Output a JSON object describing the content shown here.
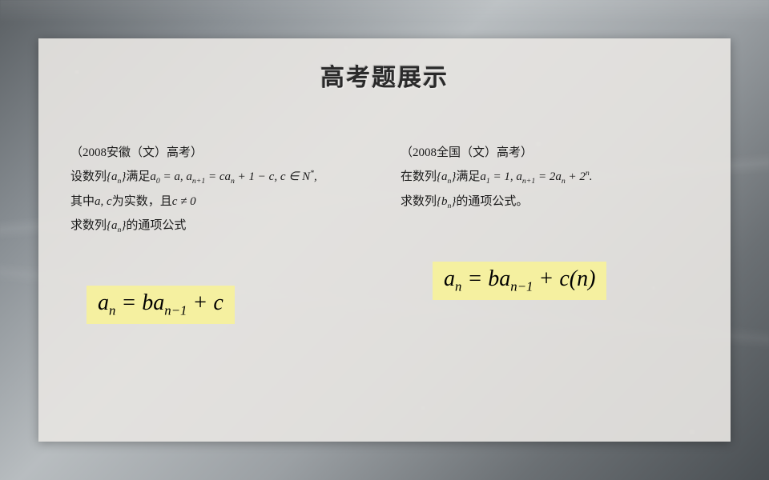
{
  "slide": {
    "title": "高考题展示",
    "background_colors": {
      "panel": "rgba(230, 228, 225, 0.92)",
      "highlight": "#f5f0a0"
    },
    "left_problem": {
      "source": "（2008安徽（文）高考）",
      "line1_prefix": "设数列",
      "line1_seq": "{aₙ}",
      "line1_mid": "满足",
      "line1_math": "a₀ = a, aₙ₊₁ = caₙ + 1 − c, c ∈ N*,",
      "line2_prefix": "其中",
      "line2_math1": "a, c",
      "line2_mid": "为实数，且",
      "line2_math2": "c ≠ 0",
      "line3_prefix": "求数列",
      "line3_seq": "{aₙ}",
      "line3_suffix": "的通项公式",
      "formula": "aₙ = baₙ₋₁ + c"
    },
    "right_problem": {
      "source": "（2008全国（文）高考）",
      "line1_prefix": "在数列",
      "line1_seq": "{aₙ}",
      "line1_mid": "满足",
      "line1_math": "a₁ = 1, aₙ₊₁ = 2aₙ + 2ⁿ.",
      "line2_prefix": "求数列",
      "line2_seq": "{bₙ}",
      "line2_suffix": "的通项公式。",
      "formula": "aₙ = baₙ₋₁ + c(n)"
    },
    "typography": {
      "title_fontsize": 30,
      "body_fontsize": 15,
      "formula_fontsize": 28,
      "body_font": "SimSun",
      "math_font": "Times New Roman"
    }
  }
}
